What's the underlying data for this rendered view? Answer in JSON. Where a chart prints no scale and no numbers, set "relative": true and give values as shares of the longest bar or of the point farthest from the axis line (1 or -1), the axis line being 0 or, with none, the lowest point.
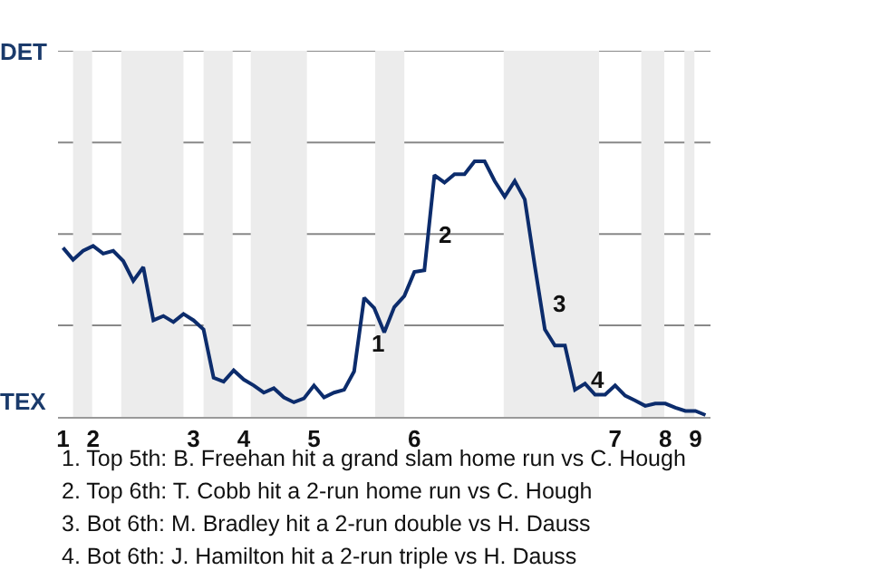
{
  "chart_data": {
    "type": "line",
    "categories": [
      "1",
      null,
      null,
      "2",
      null,
      null,
      null,
      null,
      null,
      null,
      null,
      null,
      null,
      "3",
      null,
      null,
      null,
      null,
      "4",
      null,
      null,
      null,
      null,
      null,
      null,
      "5",
      null,
      null,
      null,
      null,
      null,
      null,
      null,
      null,
      null,
      "6",
      null,
      null,
      null,
      null,
      null,
      null,
      null,
      null,
      null,
      null,
      null,
      null,
      null,
      null,
      null,
      null,
      null,
      null,
      null,
      "7",
      null,
      null,
      null,
      null,
      "8",
      null,
      null,
      "9",
      null
    ],
    "relative": true,
    "series": [
      {
        "color": "#0c2c6c",
        "values": [
          0.662,
          0.615,
          0.65,
          0.669,
          0.639,
          0.65,
          0.61,
          0.532,
          0.586,
          0.378,
          0.395,
          0.371,
          0.403,
          0.378,
          0.342,
          0.153,
          0.138,
          0.182,
          0.146,
          0.123,
          0.095,
          0.112,
          0.076,
          0.057,
          0.072,
          0.123,
          0.076,
          0.095,
          0.106,
          0.178,
          0.466,
          0.426,
          0.331,
          0.43,
          0.473,
          0.567,
          0.574,
          0.946,
          0.917,
          0.95,
          0.95,
          1,
          1,
          0.923,
          0.862,
          0.923,
          0.851,
          0.59,
          0.342,
          0.279,
          0.279,
          0.106,
          0.13,
          0.087,
          0.087,
          0.123,
          0.083,
          0.064,
          0.043,
          0.052,
          0.052,
          0.036,
          0.023,
          0.023,
          0.007
        ]
      }
    ],
    "ref_lines": [
      {
        "axis": "y",
        "value": 0.358,
        "color": "#888888"
      },
      {
        "axis": "y",
        "value": 0.716,
        "color": "#888888"
      },
      {
        "axis": "y",
        "value": 1.074,
        "color": "#888888"
      },
      {
        "axis": "y",
        "value": 1.433,
        "color": "#888888"
      }
    ],
    "annotations": [
      "DET",
      "TEX",
      "1",
      "2",
      "3",
      "4",
      "1. Top 5th: B. Freehan hit a grand slam home run vs C. Hough",
      "2. Top 6th: T. Cobb hit a 2-run home run vs C. Hough",
      "3. Bot 6th: M. Bradley hit a 2-run double vs H. Dauss",
      "4. Bot 6th: J. Hamilton hit a 2-run triple vs H. Dauss"
    ],
    "line_style": "solid",
    "marker": "none"
  }
}
